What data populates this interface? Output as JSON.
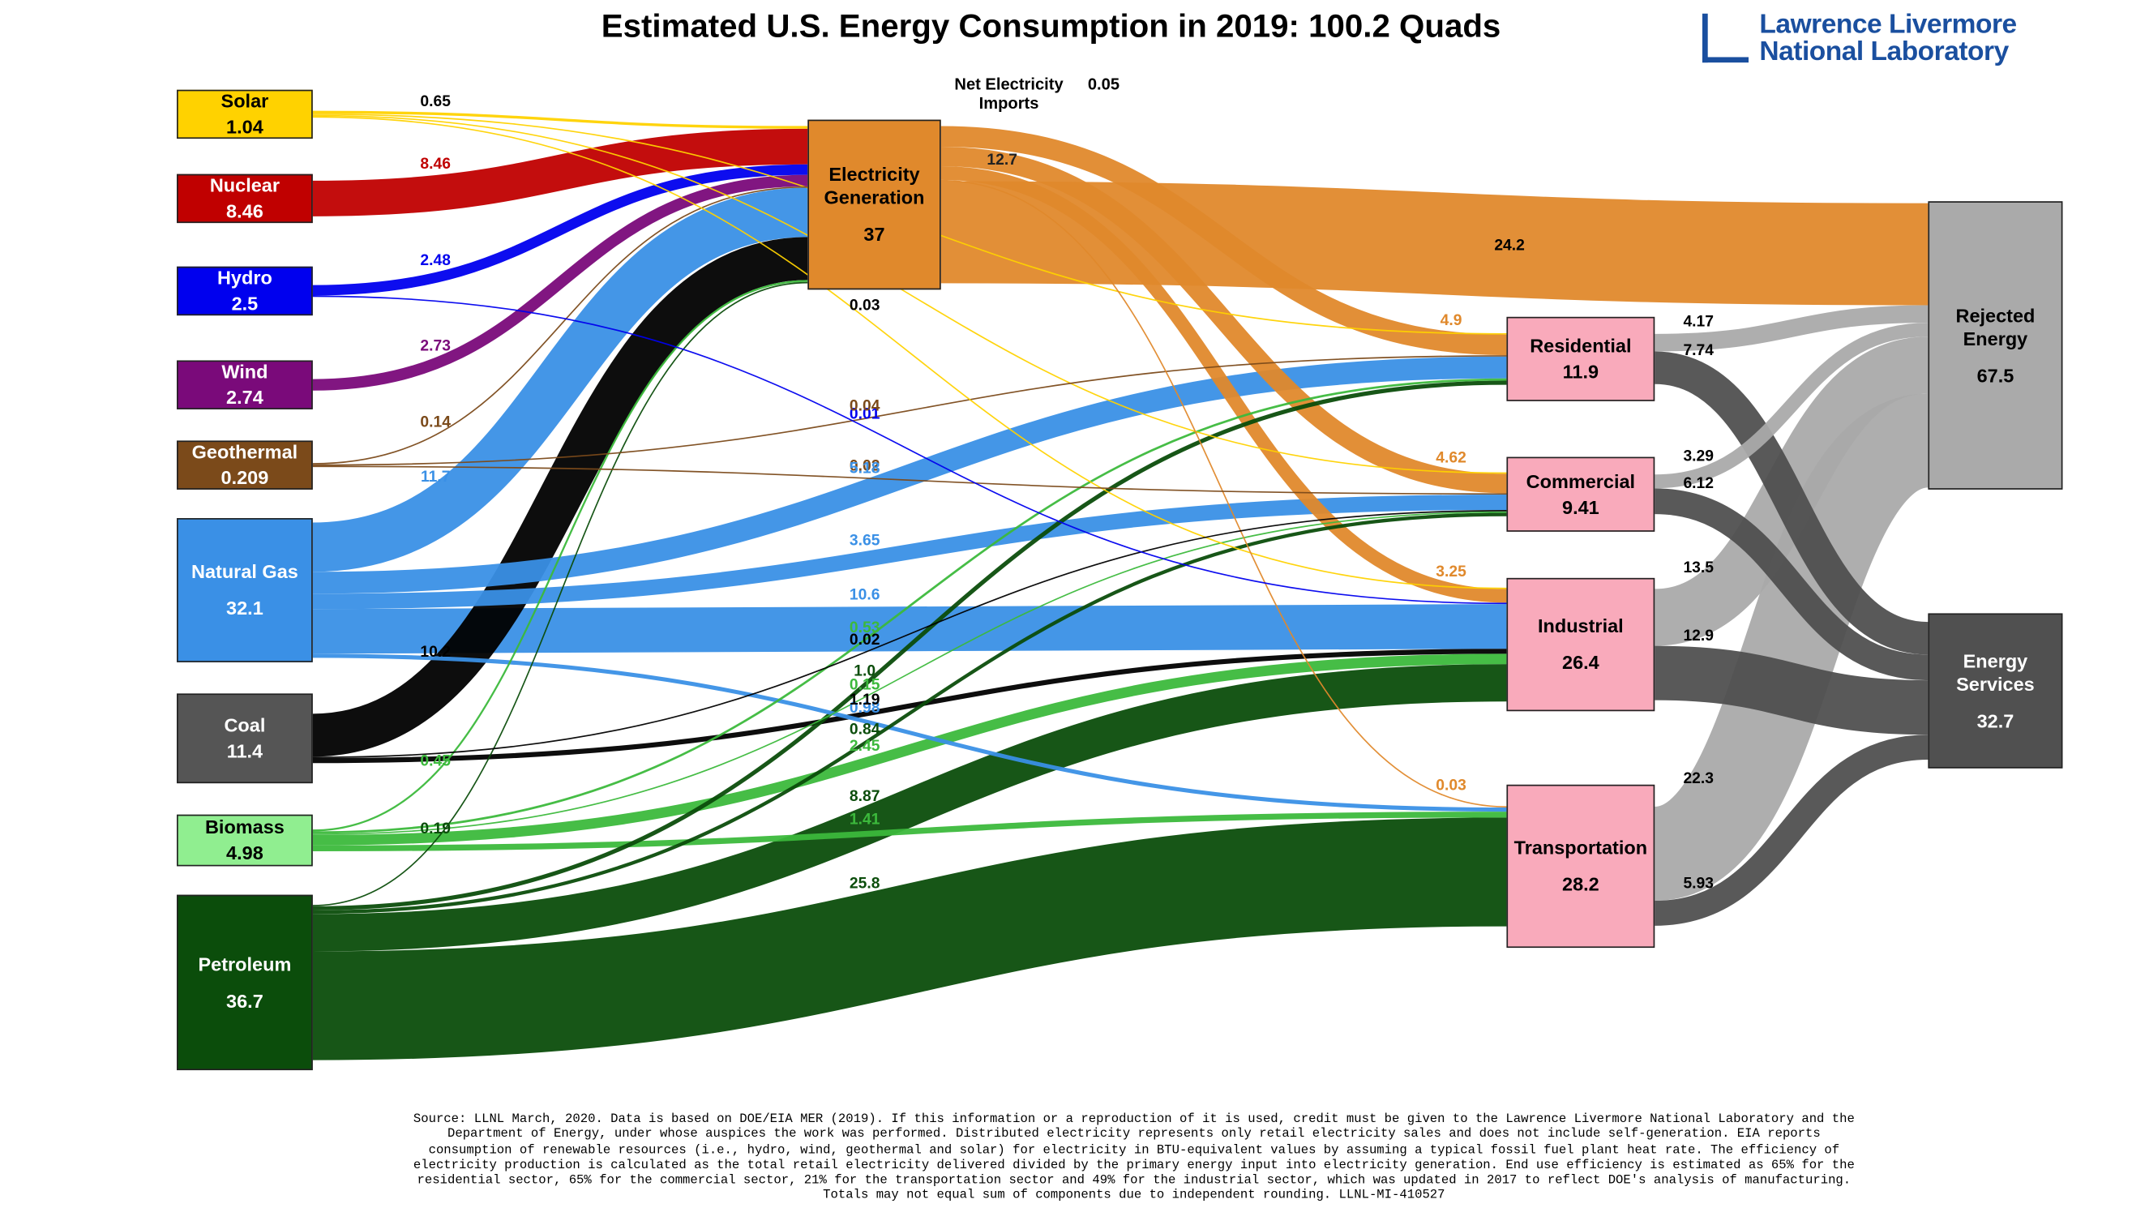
{
  "chart_data": {
    "type": "sankey",
    "title": "Estimated U.S. Energy Consumption in 2019: 100.2 Quads",
    "logo": [
      "Lawrence Livermore",
      "National Laboratory"
    ],
    "nodes": [
      {
        "name": "Solar",
        "value": 1.04,
        "color": "#ffd200"
      },
      {
        "name": "Nuclear",
        "value": 8.46,
        "color": "#c00000"
      },
      {
        "name": "Hydro",
        "value": 2.5,
        "color": "#0000ee"
      },
      {
        "name": "Wind",
        "value": 2.74,
        "color": "#7a0a7a"
      },
      {
        "name": "Geothermal",
        "value": 0.209,
        "color": "#7b4a1a"
      },
      {
        "name": "Natural Gas",
        "value": 32.1,
        "color": "#3a90e6"
      },
      {
        "name": "Coal",
        "value": 11.4,
        "color": "#000000",
        "box_color": "#555555"
      },
      {
        "name": "Biomass",
        "value": 4.98,
        "color": "#3cb93c",
        "box_color": "#90ee90"
      },
      {
        "name": "Petroleum",
        "value": 36.7,
        "color": "#0b4d0b"
      },
      {
        "name": "Net Electricity Imports",
        "value": 0.05
      },
      {
        "name": "Electricity Generation",
        "value": 37,
        "color": "#e0892c"
      },
      {
        "name": "Residential",
        "value": 11.9,
        "color": "#f9aabb"
      },
      {
        "name": "Commercial",
        "value": 9.41,
        "color": "#f9aabb"
      },
      {
        "name": "Industrial",
        "value": 26.4,
        "color": "#f9aabb"
      },
      {
        "name": "Transportation",
        "value": 28.2,
        "color": "#f9aabb"
      },
      {
        "name": "Rejected Energy",
        "value": 67.5,
        "color": "#aaaaaa"
      },
      {
        "name": "Energy Services",
        "value": 32.7,
        "color": "#505050"
      }
    ],
    "electricity_delivered": 12.7,
    "links": [
      {
        "source": 0,
        "target": 10,
        "value": 0.65
      },
      {
        "source": 0,
        "target": 11,
        "value": 0.26
      },
      {
        "source": 0,
        "target": 12,
        "value": 0.11
      },
      {
        "source": 0,
        "target": 13,
        "value": 0.03
      },
      {
        "source": 1,
        "target": 10,
        "value": 8.46
      },
      {
        "source": 2,
        "target": 10,
        "value": 2.48
      },
      {
        "source": 2,
        "target": 13,
        "value": 0.01
      },
      {
        "source": 3,
        "target": 10,
        "value": 2.73
      },
      {
        "source": 4,
        "target": 10,
        "value": 0.14
      },
      {
        "source": 4,
        "target": 11,
        "value": 0.04
      },
      {
        "source": 4,
        "target": 12,
        "value": 0.02
      },
      {
        "source": 5,
        "target": 10,
        "value": 11.7
      },
      {
        "source": 5,
        "target": 11,
        "value": 5.18
      },
      {
        "source": 5,
        "target": 12,
        "value": 3.65
      },
      {
        "source": 5,
        "target": 13,
        "value": 10.6
      },
      {
        "source": 5,
        "target": 14,
        "value": 0.98
      },
      {
        "source": 6,
        "target": 10,
        "value": 10.2
      },
      {
        "source": 6,
        "target": 12,
        "value": 0.02
      },
      {
        "source": 6,
        "target": 13,
        "value": 1.19
      },
      {
        "source": 7,
        "target": 10,
        "value": 0.45
      },
      {
        "source": 7,
        "target": 11,
        "value": 0.53
      },
      {
        "source": 7,
        "target": 12,
        "value": 0.15
      },
      {
        "source": 7,
        "target": 13,
        "value": 2.45
      },
      {
        "source": 7,
        "target": 14,
        "value": 1.41
      },
      {
        "source": 8,
        "target": 10,
        "value": 0.19
      },
      {
        "source": 8,
        "target": 11,
        "value": 1,
        "value_label": "1.0"
      },
      {
        "source": 8,
        "target": 12,
        "value": 0.84
      },
      {
        "source": 8,
        "target": 13,
        "value": 8.87
      },
      {
        "source": 8,
        "target": 14,
        "value": 25.8
      },
      {
        "source": 10,
        "target": 11,
        "value": 4.9
      },
      {
        "source": 10,
        "target": 12,
        "value": 4.62
      },
      {
        "source": 10,
        "target": 13,
        "value": 3.25
      },
      {
        "source": 10,
        "target": 14,
        "value": 0.03
      },
      {
        "source": 10,
        "target": 15,
        "value": 24.2
      },
      {
        "source": 11,
        "target": 15,
        "value": 4.17
      },
      {
        "source": 11,
        "target": 16,
        "value": 7.74
      },
      {
        "source": 12,
        "target": 15,
        "value": 3.29
      },
      {
        "source": 12,
        "target": 16,
        "value": 6.12
      },
      {
        "source": 13,
        "target": 15,
        "value": 13.5
      },
      {
        "source": 13,
        "target": 16,
        "value": 12.9
      },
      {
        "source": 14,
        "target": 15,
        "value": 22.3
      },
      {
        "source": 14,
        "target": 16,
        "value": 5.93
      }
    ],
    "source_note": "Source: LLNL March, 2020. Data is based on DOE/EIA MER (2019). If this information or a reproduction of it is used, credit must be given to the Lawrence Livermore National Laboratory and the Department of Energy, under whose auspices the work was performed. Distributed electricity represents only retail electricity sales and does not include self-generation. EIA reports consumption of renewable resources (i.e., hydro, wind, geothermal and solar) for electricity in BTU-equivalent values by assuming a typical fossil fuel plant heat rate. The efficiency of electricity production is calculated as the total retail electricity delivered divided by the primary energy input into electricity generation. End use efficiency is estimated as 65% for the residential sector, 65% for the commercial sector, 21% for the transportation sector and 49% for the industrial sector, which was updated in 2017 to reflect DOE's analysis of manufacturing. Totals may not equal sum of components due to independent rounding. LLNL-MI-410527"
  }
}
